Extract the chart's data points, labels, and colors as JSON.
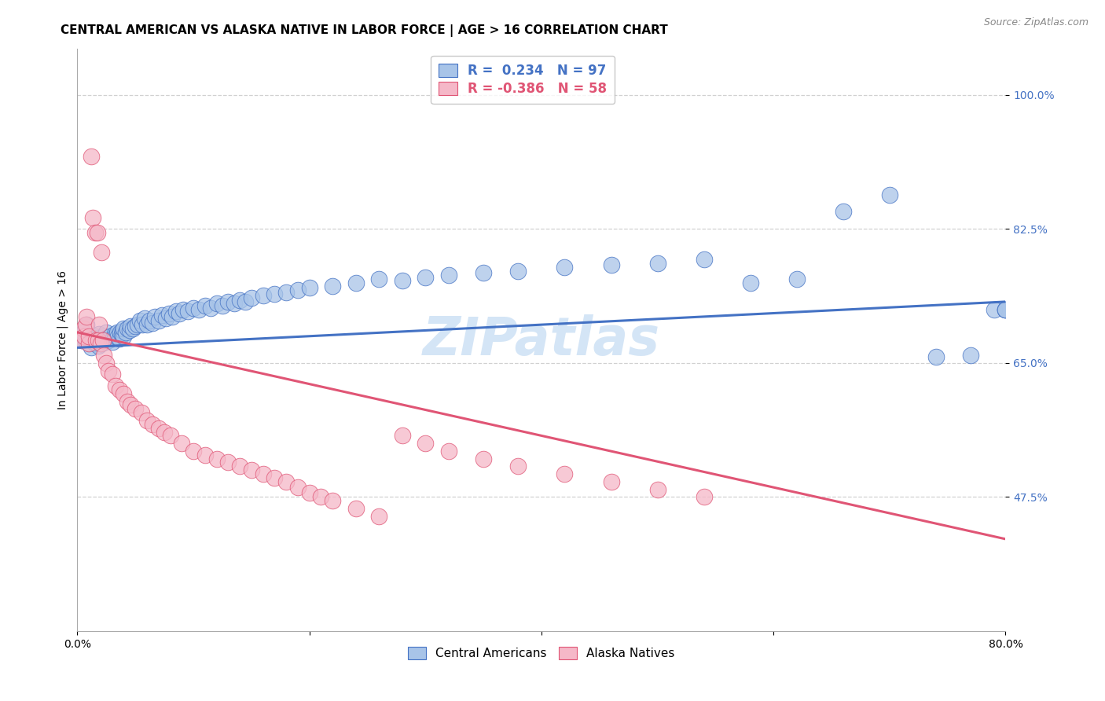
{
  "title": "CENTRAL AMERICAN VS ALASKA NATIVE IN LABOR FORCE | AGE > 16 CORRELATION CHART",
  "source": "Source: ZipAtlas.com",
  "ylabel": "In Labor Force | Age > 16",
  "xlim": [
    0.0,
    0.8
  ],
  "ylim": [
    0.3,
    1.06
  ],
  "yticks": [
    0.475,
    0.65,
    0.825,
    1.0
  ],
  "ytick_labels": [
    "47.5%",
    "65.0%",
    "82.5%",
    "100.0%"
  ],
  "xticks": [
    0.0,
    0.2,
    0.4,
    0.6,
    0.8
  ],
  "xtick_labels": [
    "0.0%",
    "",
    "",
    "",
    "80.0%"
  ],
  "blue_R": 0.234,
  "blue_N": 97,
  "pink_R": -0.386,
  "pink_N": 58,
  "blue_color": "#a8c4e8",
  "pink_color": "#f5b8c8",
  "blue_line_color": "#4472c4",
  "pink_line_color": "#e05575",
  "blue_x": [
    0.004,
    0.005,
    0.007,
    0.008,
    0.01,
    0.01,
    0.012,
    0.013,
    0.015,
    0.015,
    0.016,
    0.017,
    0.018,
    0.019,
    0.02,
    0.02,
    0.021,
    0.022,
    0.023,
    0.024,
    0.025,
    0.025,
    0.027,
    0.028,
    0.03,
    0.031,
    0.032,
    0.033,
    0.034,
    0.035,
    0.036,
    0.037,
    0.038,
    0.039,
    0.04,
    0.04,
    0.042,
    0.043,
    0.045,
    0.046,
    0.048,
    0.05,
    0.052,
    0.054,
    0.056,
    0.058,
    0.06,
    0.062,
    0.065,
    0.067,
    0.07,
    0.073,
    0.076,
    0.079,
    0.082,
    0.085,
    0.088,
    0.091,
    0.095,
    0.1,
    0.105,
    0.11,
    0.115,
    0.12,
    0.125,
    0.13,
    0.135,
    0.14,
    0.145,
    0.15,
    0.16,
    0.17,
    0.18,
    0.19,
    0.2,
    0.22,
    0.24,
    0.26,
    0.28,
    0.3,
    0.32,
    0.35,
    0.38,
    0.42,
    0.46,
    0.5,
    0.54,
    0.58,
    0.62,
    0.66,
    0.7,
    0.74,
    0.77,
    0.79,
    0.8,
    0.8,
    0.8
  ],
  "blue_y": [
    0.68,
    0.69,
    0.68,
    0.7,
    0.675,
    0.685,
    0.67,
    0.68,
    0.675,
    0.685,
    0.678,
    0.683,
    0.672,
    0.688,
    0.675,
    0.68,
    0.676,
    0.682,
    0.685,
    0.678,
    0.683,
    0.69,
    0.68,
    0.685,
    0.678,
    0.683,
    0.688,
    0.685,
    0.69,
    0.685,
    0.682,
    0.69,
    0.688,
    0.692,
    0.685,
    0.695,
    0.69,
    0.695,
    0.693,
    0.698,
    0.695,
    0.698,
    0.7,
    0.705,
    0.7,
    0.708,
    0.7,
    0.705,
    0.702,
    0.71,
    0.705,
    0.712,
    0.708,
    0.715,
    0.71,
    0.718,
    0.715,
    0.72,
    0.718,
    0.722,
    0.72,
    0.725,
    0.722,
    0.728,
    0.725,
    0.73,
    0.728,
    0.732,
    0.73,
    0.735,
    0.738,
    0.74,
    0.742,
    0.745,
    0.748,
    0.75,
    0.755,
    0.76,
    0.758,
    0.762,
    0.765,
    0.768,
    0.77,
    0.775,
    0.778,
    0.78,
    0.785,
    0.755,
    0.76,
    0.848,
    0.87,
    0.658,
    0.66,
    0.72,
    0.72,
    0.72,
    0.72
  ],
  "pink_x": [
    0.004,
    0.005,
    0.006,
    0.007,
    0.008,
    0.01,
    0.01,
    0.012,
    0.013,
    0.015,
    0.016,
    0.017,
    0.018,
    0.019,
    0.02,
    0.021,
    0.022,
    0.023,
    0.025,
    0.027,
    0.03,
    0.033,
    0.036,
    0.04,
    0.043,
    0.046,
    0.05,
    0.055,
    0.06,
    0.065,
    0.07,
    0.075,
    0.08,
    0.09,
    0.1,
    0.11,
    0.12,
    0.13,
    0.14,
    0.15,
    0.16,
    0.17,
    0.18,
    0.19,
    0.2,
    0.21,
    0.22,
    0.24,
    0.26,
    0.28,
    0.3,
    0.32,
    0.35,
    0.38,
    0.42,
    0.46,
    0.5,
    0.54
  ],
  "pink_y": [
    0.68,
    0.695,
    0.685,
    0.7,
    0.71,
    0.675,
    0.685,
    0.92,
    0.84,
    0.82,
    0.68,
    0.82,
    0.68,
    0.7,
    0.675,
    0.795,
    0.68,
    0.66,
    0.65,
    0.64,
    0.635,
    0.62,
    0.615,
    0.61,
    0.6,
    0.595,
    0.59,
    0.585,
    0.575,
    0.57,
    0.565,
    0.56,
    0.555,
    0.545,
    0.535,
    0.53,
    0.525,
    0.52,
    0.515,
    0.51,
    0.505,
    0.5,
    0.495,
    0.488,
    0.48,
    0.475,
    0.47,
    0.46,
    0.45,
    0.555,
    0.545,
    0.535,
    0.525,
    0.515,
    0.505,
    0.495,
    0.485,
    0.475
  ],
  "blue_trend_x0": 0.0,
  "blue_trend_y0": 0.67,
  "blue_trend_x1": 0.8,
  "blue_trend_y1": 0.73,
  "pink_trend_x0": 0.0,
  "pink_trend_y0": 0.69,
  "pink_trend_x1": 0.8,
  "pink_trend_y1": 0.42,
  "watermark_text": "ZIPatlas",
  "watermark_color": "#b8d4f0",
  "background_color": "#ffffff",
  "grid_color": "#cccccc",
  "title_fontsize": 11,
  "axis_label_fontsize": 10,
  "tick_fontsize": 10,
  "legend_blue_label": "R =  0.234   N = 97",
  "legend_pink_label": "R = -0.386   N = 58",
  "bottom_legend_labels": [
    "Central Americans",
    "Alaska Natives"
  ]
}
